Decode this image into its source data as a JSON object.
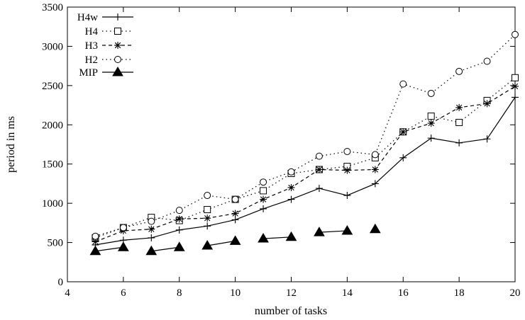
{
  "chart_data": {
    "type": "line",
    "title": "",
    "xlabel": "number of tasks",
    "ylabel": "period in ms",
    "xlim": [
      4,
      20
    ],
    "ylim": [
      0,
      3500
    ],
    "xticks": [
      4,
      6,
      8,
      10,
      12,
      14,
      16,
      18,
      20
    ],
    "yticks": [
      0,
      500,
      1000,
      1500,
      2000,
      2500,
      3000,
      3500
    ],
    "grid": false,
    "legend_position": "top-left",
    "series": [
      {
        "name": "H4w",
        "marker": "plus",
        "line": "solid",
        "x": [
          5,
          6,
          7,
          8,
          9,
          10,
          11,
          12,
          13,
          14,
          15,
          16,
          17,
          18,
          19,
          20
        ],
        "y": [
          470,
          530,
          560,
          660,
          710,
          790,
          930,
          1050,
          1190,
          1100,
          1250,
          1580,
          1830,
          1770,
          1820,
          2350
        ]
      },
      {
        "name": "H4",
        "marker": "square",
        "line": "dotted",
        "x": [
          5,
          6,
          7,
          8,
          9,
          10,
          11,
          12,
          13,
          14,
          15,
          16,
          17,
          18,
          19,
          20
        ],
        "y": [
          560,
          690,
          820,
          780,
          920,
          1050,
          1160,
          1380,
          1430,
          1470,
          1580,
          1910,
          2110,
          2030,
          2310,
          2600
        ]
      },
      {
        "name": "H3",
        "marker": "star",
        "line": "dashed",
        "x": [
          5,
          6,
          7,
          8,
          9,
          10,
          11,
          12,
          13,
          14,
          15,
          16,
          17,
          18,
          19,
          20
        ],
        "y": [
          510,
          650,
          670,
          800,
          810,
          870,
          1050,
          1200,
          1430,
          1420,
          1430,
          1910,
          2020,
          2220,
          2270,
          2490
        ]
      },
      {
        "name": "H2",
        "marker": "circle",
        "line": "dotted",
        "x": [
          5,
          6,
          7,
          8,
          9,
          10,
          11,
          12,
          13,
          14,
          15,
          16,
          17,
          18,
          19,
          20
        ],
        "y": [
          580,
          690,
          770,
          910,
          1100,
          1050,
          1270,
          1400,
          1600,
          1660,
          1620,
          2520,
          2400,
          2680,
          2810,
          3150
        ]
      },
      {
        "name": "MIP",
        "marker": "triangle",
        "line": "solid-segments",
        "x": [
          5,
          6,
          7,
          8,
          9,
          10,
          11,
          12,
          13,
          14,
          15
        ],
        "y": [
          390,
          440,
          390,
          440,
          460,
          520,
          550,
          570,
          630,
          650,
          670
        ]
      }
    ]
  }
}
